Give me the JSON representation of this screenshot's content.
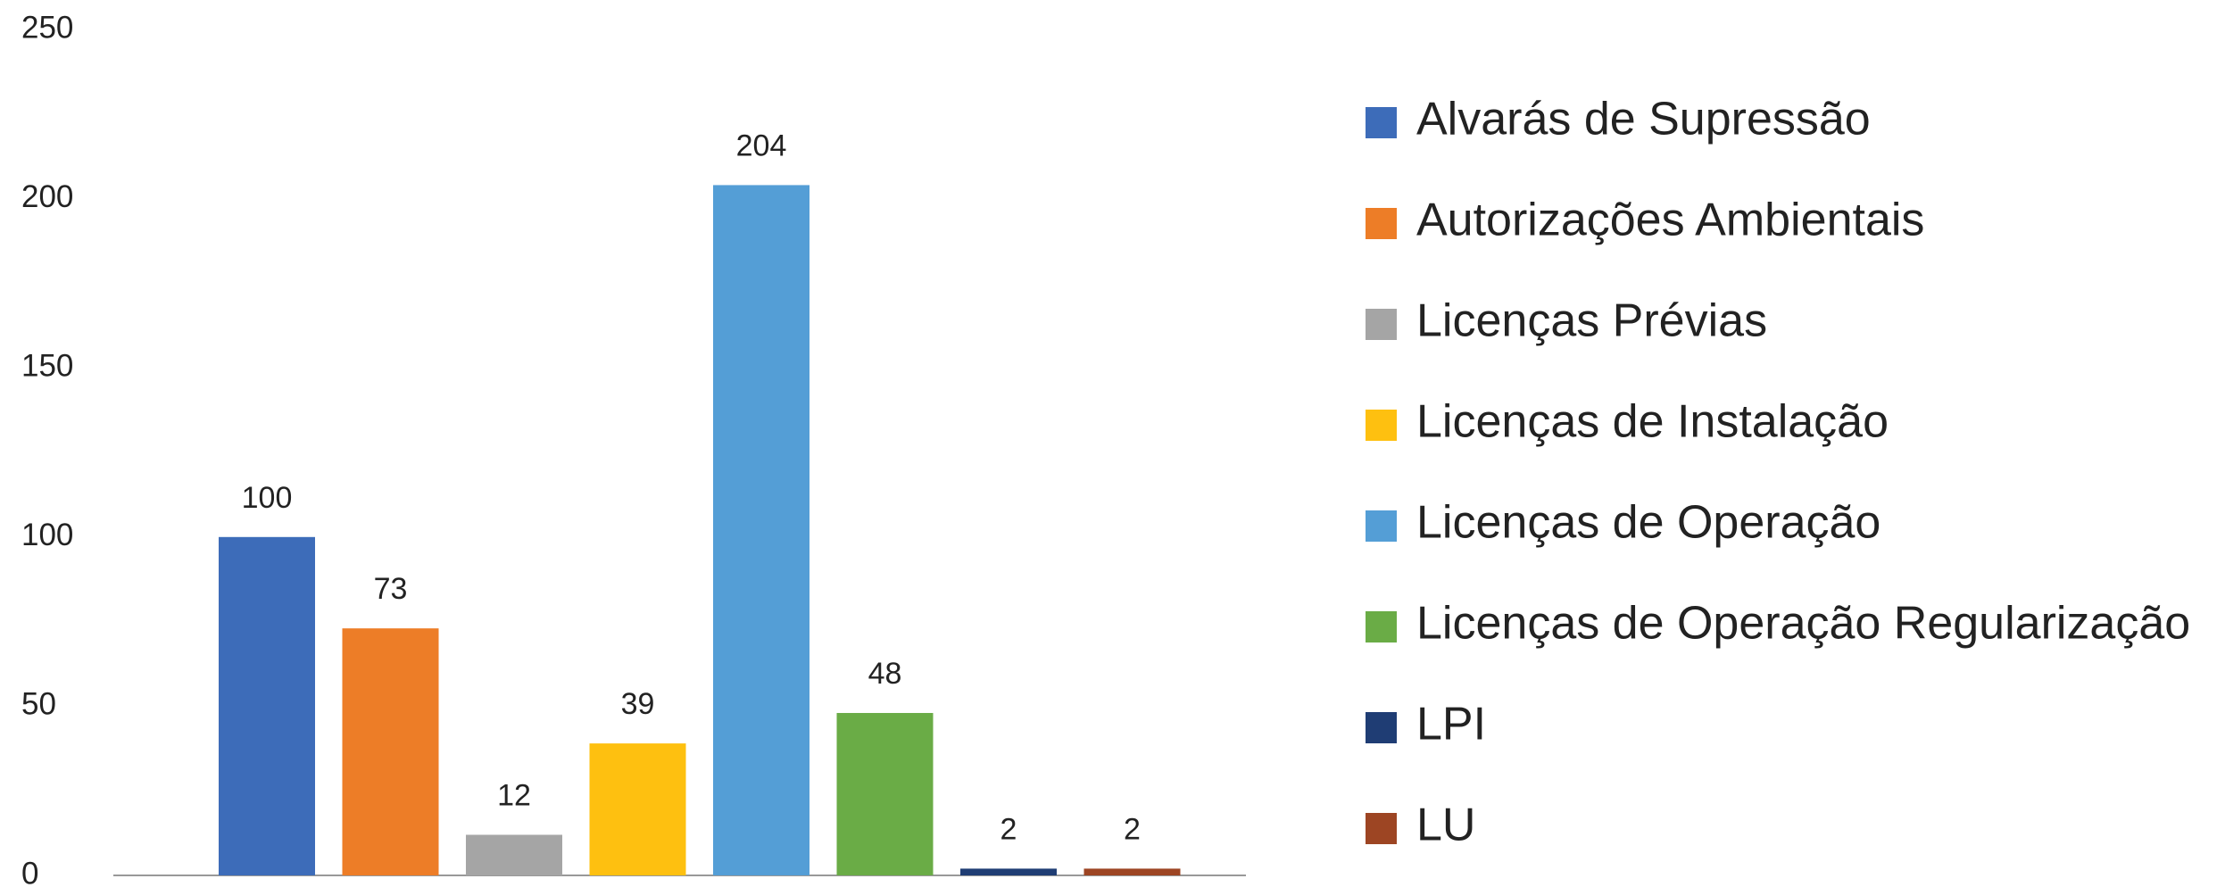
{
  "chart_data": {
    "type": "bar",
    "categories": [
      "Alvarás de Supressão",
      "Autorizações Ambientais",
      "Licenças Prévias",
      "Licenças de Instalação",
      "Licenças de Operação",
      "Licenças de Operação Regularização",
      "LPI",
      "LU"
    ],
    "values": [
      100,
      73,
      12,
      39,
      204,
      48,
      2,
      2
    ],
    "colors": [
      "#3d6cb9",
      "#ed7d27",
      "#a5a5a5",
      "#fec010",
      "#549ed6",
      "#6aac46",
      "#1f3d74",
      "#9d4523"
    ],
    "ylim": [
      0,
      250
    ],
    "yticks": [
      0,
      50,
      100,
      150,
      200,
      250
    ],
    "grid": false,
    "legend": "right"
  }
}
